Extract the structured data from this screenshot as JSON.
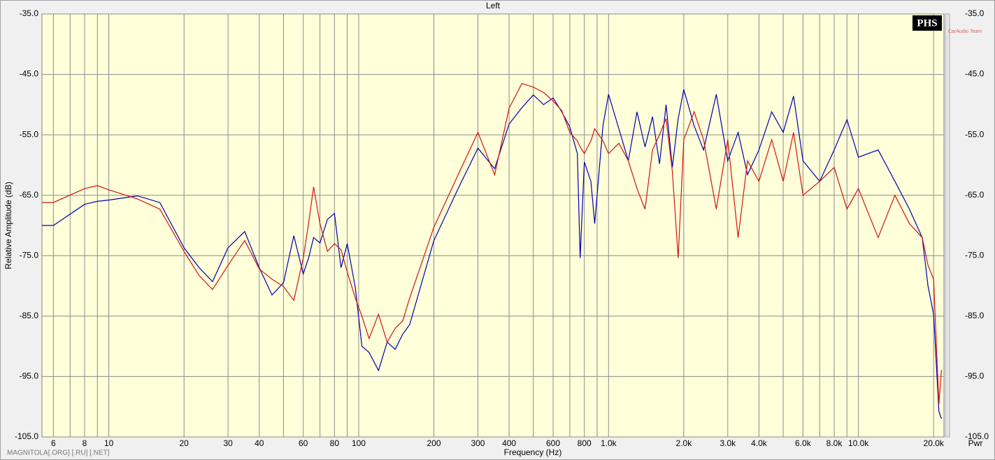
{
  "chart_data": {
    "type": "line",
    "title": "Left",
    "y_label": "Relative Amplitude (dB)",
    "x_label": "Frequency (Hz)",
    "y2_label": "Pwr",
    "watermark": "MAGNITOLA[.ORG] [.RU] [.NET]",
    "logo": "PHS",
    "logo_caption": "CarAudio Team",
    "x_scale": "log",
    "grid": true,
    "background": "#ffffd9",
    "xlim": [
      5.4,
      22000
    ],
    "ylim": [
      -105,
      -35
    ],
    "xticks": [
      6,
      8,
      10,
      20,
      30,
      40,
      60,
      80,
      100,
      200,
      300,
      400,
      600,
      800,
      {
        "value": 1000,
        "label": "1.0k"
      },
      {
        "value": 2000,
        "label": "2.0k"
      },
      {
        "value": 3000,
        "label": "3.0k"
      },
      {
        "value": 4000,
        "label": "4.0k"
      },
      {
        "value": 6000,
        "label": "6.0k"
      },
      {
        "value": 8000,
        "label": "8.0k"
      },
      {
        "value": 10000,
        "label": "10.0k"
      },
      {
        "value": 20000,
        "label": "20.0k"
      }
    ],
    "xminor": [
      7,
      9,
      50,
      70,
      90,
      500,
      700,
      900,
      5000,
      7000,
      9000
    ],
    "yticks": [
      {
        "value": -35,
        "label": "-35.0"
      },
      {
        "value": -45,
        "label": "-45.0"
      },
      {
        "value": -55,
        "label": "-55.0"
      },
      {
        "value": -65,
        "label": "-65.0"
      },
      {
        "value": -75,
        "label": "-75.0"
      },
      {
        "value": -85,
        "label": "-85.0"
      },
      {
        "value": -95,
        "label": "-95.0"
      },
      {
        "value": -105,
        "label": "-105.0"
      }
    ],
    "x": [
      5.4,
      6,
      8,
      9,
      10,
      13,
      16,
      20,
      23,
      26,
      30,
      35,
      40,
      45,
      50,
      55,
      60,
      63,
      66,
      70,
      75,
      80,
      85,
      90,
      97,
      103,
      110,
      120,
      130,
      140,
      150,
      160,
      200,
      250,
      300,
      350,
      400,
      450,
      500,
      550,
      600,
      650,
      700,
      750,
      770,
      800,
      850,
      880,
      950,
      1000,
      1100,
      1200,
      1300,
      1400,
      1500,
      1600,
      1700,
      1800,
      1900,
      2000,
      2200,
      2400,
      2700,
      3000,
      3300,
      3600,
      4000,
      4500,
      5000,
      5500,
      6000,
      7000,
      8000,
      9000,
      10000,
      12000,
      14000,
      16000,
      18000,
      19000,
      20000,
      21000,
      21500
    ],
    "series": [
      {
        "color": "#0000b4",
        "values": [
          -70,
          -70,
          -66.5,
          -66,
          -65.8,
          -65.1,
          -66.2,
          -73.7,
          -77,
          -79.3,
          -73.7,
          -71,
          -77,
          -81.5,
          -79.5,
          -71.7,
          -78,
          -75.4,
          -72,
          -72.9,
          -69,
          -68,
          -77,
          -73,
          -80.3,
          -90,
          -91,
          -94,
          -89.3,
          -90.5,
          -88,
          -86.4,
          -72.5,
          -63.9,
          -57.2,
          -60.6,
          -53.2,
          -50.5,
          -48.4,
          -50,
          -48.9,
          -51.2,
          -53.7,
          -58.1,
          -75.4,
          -59.5,
          -62.7,
          -69.7,
          -53.5,
          -48.3,
          -54,
          -59.3,
          -51.2,
          -57,
          -52,
          -59.8,
          -50,
          -60.4,
          -52.3,
          -47.5,
          -53.5,
          -57.5,
          -48.3,
          -59.3,
          -54.6,
          -61.6,
          -57.5,
          -51.2,
          -54.6,
          -48.6,
          -59.3,
          -62.7,
          -57.5,
          -52.5,
          -58.7,
          -57.5,
          -62.7,
          -67.3,
          -72,
          -80,
          -84.7,
          -100.8,
          -102
        ]
      },
      {
        "color": "#d21414",
        "values": [
          -66.2,
          -66.2,
          -63.9,
          -63.4,
          -64.1,
          -65.6,
          -67.3,
          -74.3,
          -78.3,
          -80.6,
          -76.6,
          -72.5,
          -77.2,
          -78.9,
          -80.1,
          -82.4,
          -75.4,
          -69.7,
          -63.6,
          -69.7,
          -74.3,
          -73,
          -74,
          -77.7,
          -82,
          -85,
          -88.7,
          -84.7,
          -89.3,
          -87,
          -85.8,
          -82,
          -70.3,
          -61.6,
          -54.6,
          -61.6,
          -50.6,
          -46.5,
          -47.1,
          -48,
          -49.4,
          -51,
          -54.6,
          -56,
          -57,
          -58.1,
          -56,
          -54,
          -56,
          -58.1,
          -56.4,
          -59.3,
          -63.9,
          -67.3,
          -57.5,
          -55,
          -52.3,
          -61,
          -75.4,
          -55.8,
          -51.2,
          -55.8,
          -67.3,
          -55.8,
          -72,
          -59.3,
          -62.7,
          -55.8,
          -62.7,
          -54.6,
          -65,
          -62.7,
          -60.4,
          -67.3,
          -63.9,
          -72,
          -65,
          -69.7,
          -72,
          -76.6,
          -78.9,
          -99.6,
          -93.9
        ]
      }
    ]
  }
}
